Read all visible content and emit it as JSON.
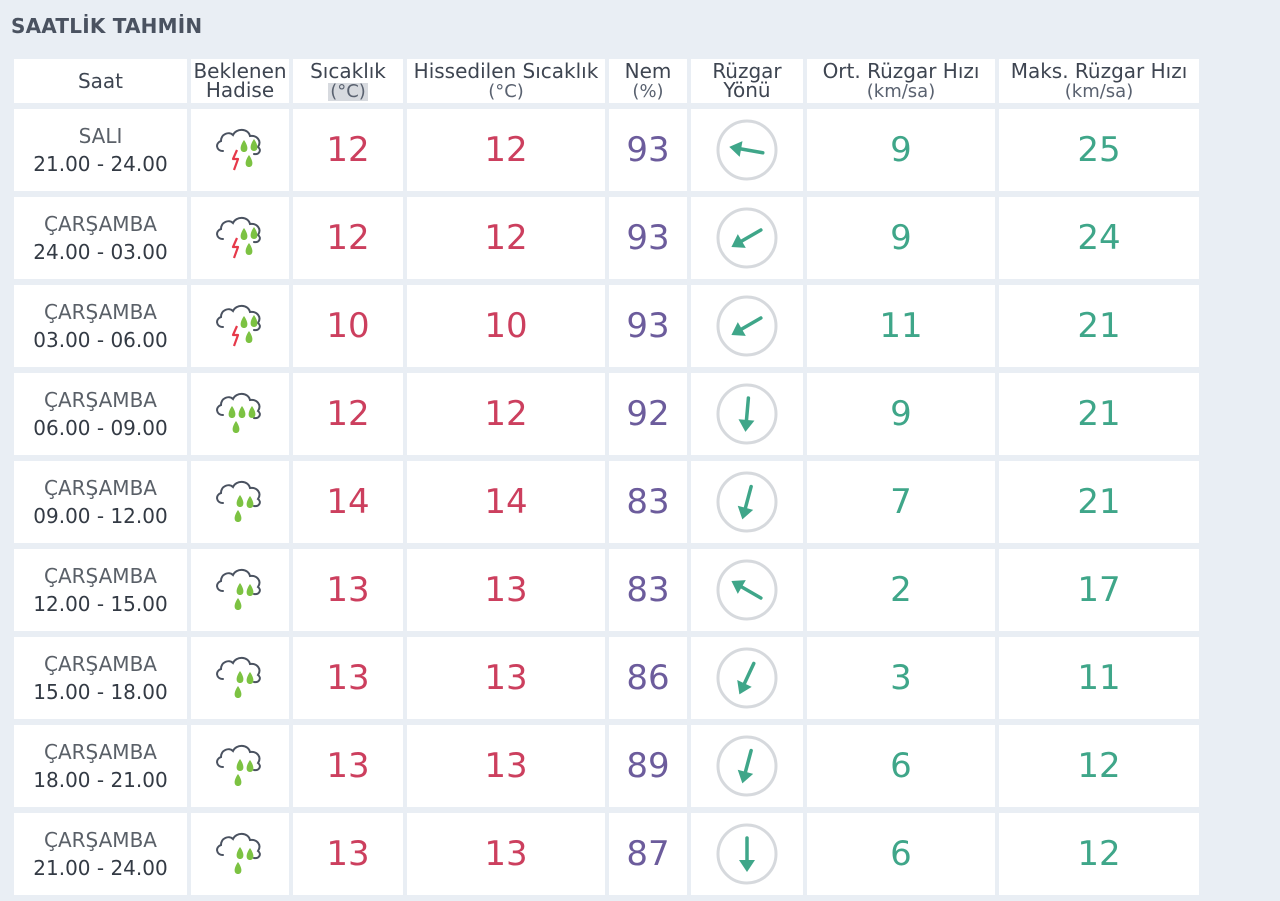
{
  "title": "SAATLİK TAHMİN",
  "headers": {
    "time": "Saat",
    "weather_1": "Beklenen",
    "weather_2": "Hadise",
    "temp": "Sıcaklık",
    "temp_unit": "(°C)",
    "feels": "Hissedilen Sıcaklık",
    "feels_unit": "(°C)",
    "humidity": "Nem",
    "humidity_unit": "(%)",
    "wind_dir_1": "Rüzgar",
    "wind_dir_2": "Yönü",
    "avg_wind": "Ort. Rüzgar Hızı",
    "avg_wind_unit": "(km/sa)",
    "max_wind": "Maks. Rüzgar Hızı",
    "max_wind_unit": "(km/sa)"
  },
  "colors": {
    "temperature": "#cc3f5e",
    "humidity": "#6c5c9c",
    "wind": "#3fa689",
    "lightning": "#e6394a",
    "rain": "#7cc242"
  },
  "rows": [
    {
      "day": "SALI",
      "range": "21.00 - 24.00",
      "weather": "thunderstorm-rain-icon",
      "temp": "12",
      "feels": "12",
      "humidity": "93",
      "wind_dir_deg": 100,
      "avg_wind": "9",
      "max_wind": "25"
    },
    {
      "day": "ÇARŞAMBA",
      "range": "24.00 - 03.00",
      "weather": "thunderstorm-rain-icon",
      "temp": "12",
      "feels": "12",
      "humidity": "93",
      "wind_dir_deg": 60,
      "avg_wind": "9",
      "max_wind": "24"
    },
    {
      "day": "ÇARŞAMBA",
      "range": "03.00 - 06.00",
      "weather": "thunderstorm-rain-icon",
      "temp": "10",
      "feels": "10",
      "humidity": "93",
      "wind_dir_deg": 60,
      "avg_wind": "11",
      "max_wind": "21"
    },
    {
      "day": "ÇARŞAMBA",
      "range": "06.00 - 09.00",
      "weather": "heavy-rain-icon",
      "temp": "12",
      "feels": "12",
      "humidity": "92",
      "wind_dir_deg": 5,
      "avg_wind": "9",
      "max_wind": "21"
    },
    {
      "day": "ÇARŞAMBA",
      "range": "09.00 - 12.00",
      "weather": "rain-icon",
      "temp": "14",
      "feels": "14",
      "humidity": "83",
      "wind_dir_deg": 15,
      "avg_wind": "7",
      "max_wind": "21"
    },
    {
      "day": "ÇARŞAMBA",
      "range": "12.00 - 15.00",
      "weather": "rain-icon",
      "temp": "13",
      "feels": "13",
      "humidity": "83",
      "wind_dir_deg": 120,
      "avg_wind": "2",
      "max_wind": "17"
    },
    {
      "day": "ÇARŞAMBA",
      "range": "15.00 - 18.00",
      "weather": "rain-icon",
      "temp": "13",
      "feels": "13",
      "humidity": "86",
      "wind_dir_deg": 25,
      "avg_wind": "3",
      "max_wind": "11"
    },
    {
      "day": "ÇARŞAMBA",
      "range": "18.00 - 21.00",
      "weather": "rain-icon",
      "temp": "13",
      "feels": "13",
      "humidity": "89",
      "wind_dir_deg": 15,
      "avg_wind": "6",
      "max_wind": "12"
    },
    {
      "day": "ÇARŞAMBA",
      "range": "21.00 - 24.00",
      "weather": "rain-icon",
      "temp": "13",
      "feels": "13",
      "humidity": "87",
      "wind_dir_deg": 0,
      "avg_wind": "6",
      "max_wind": "12"
    }
  ]
}
